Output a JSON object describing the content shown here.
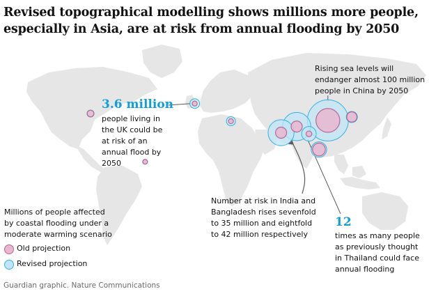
{
  "headline": "Revised topographical modelling shows millions more people, especially in Asia, are at risk from annual flooding by 2050",
  "chart_data": {
    "type": "bubble-map",
    "title": "Revised topographical modelling shows millions more people, especially in Asia, are at risk from annual flooding by 2050",
    "size_label": "Millions of people affected by coastal flooding under a moderate warming scenario",
    "legend": [
      {
        "key": "old",
        "label": "Old projection",
        "fill": "#e9b6cf",
        "stroke": "#b36a94"
      },
      {
        "key": "revised",
        "label": "Revised projection",
        "fill": "#bfe6f6",
        "stroke": "#33b3e0"
      }
    ],
    "locations": [
      {
        "name": "UK",
        "lon": -1.5,
        "lat": 53,
        "old": 0.5,
        "revised": 3.6
      },
      {
        "name": "USA",
        "lon": -95,
        "lat": 40,
        "old": 1.3,
        "revised": 1.5
      },
      {
        "name": "Brazil",
        "lon": -46,
        "lat": -23,
        "old": 0.4,
        "revised": 0.5
      },
      {
        "name": "Egypt",
        "lon": 31,
        "lat": 30,
        "old": 0.5,
        "revised": 3.0
      },
      {
        "name": "China",
        "lon": 118,
        "lat": 31,
        "old": 29,
        "revised": 93
      },
      {
        "name": "India",
        "lon": 76,
        "lat": 15,
        "old": 5,
        "revised": 35
      },
      {
        "name": "Bangladesh",
        "lon": 90,
        "lat": 23,
        "old": 5,
        "revised": 42
      },
      {
        "name": "Thailand",
        "lon": 101,
        "lat": 13.5,
        "old": 0.8,
        "revised": 9.6
      },
      {
        "name": "Japan",
        "lon": 139.5,
        "lat": 35.5,
        "old": 4,
        "revised": 5
      },
      {
        "name": "Indonesia",
        "lon": 110,
        "lat": -7,
        "old": 7,
        "revised": 11
      }
    ]
  },
  "annotations": {
    "uk_figure": "3.6 million",
    "uk_text": [
      "people living in",
      "the UK could be",
      "at risk of an",
      "annual flood by",
      "2050"
    ],
    "china_text": [
      "Rising sea levels will",
      "endanger almost 100 million",
      "people in China by 2050"
    ],
    "india_text": [
      "Number at risk in India and",
      "Bangladesh rises sevenfold",
      "to 35 million and eightfold",
      "to 42 million respectively"
    ],
    "thai_figure": "12",
    "thai_text": [
      "times as many people",
      "as previously thought",
      "in Thailand could face",
      "annual flooding"
    ]
  },
  "legend_title": [
    "Millions of people affected",
    "by coastal flooding under a",
    "moderate warming scenario"
  ],
  "source": "Guardian graphic. Nature Communications",
  "colors": {
    "land": "#e6e6e6",
    "accent": "#0f9ed8",
    "leader": "#5a5a5a"
  }
}
